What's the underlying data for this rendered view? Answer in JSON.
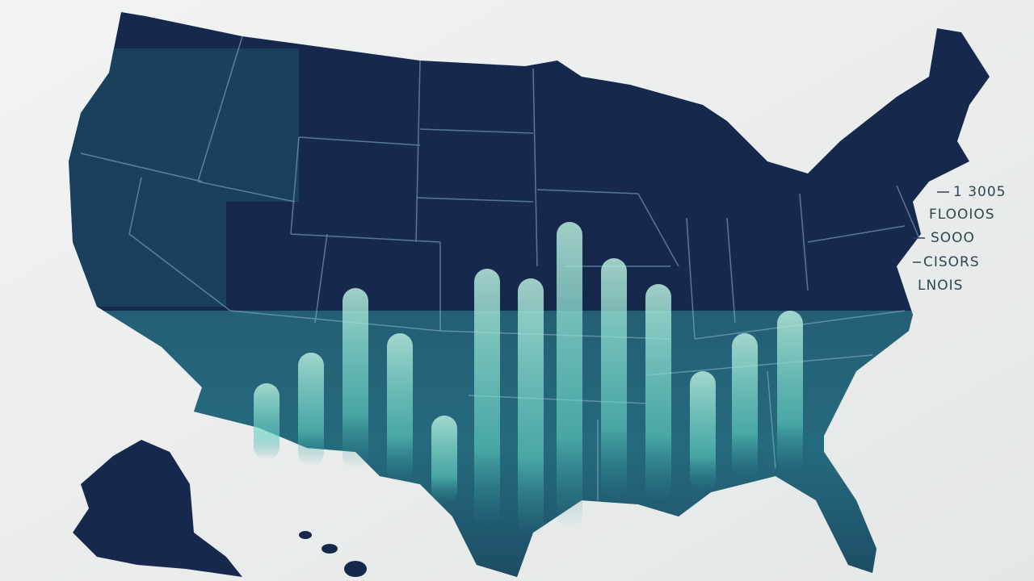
{
  "labels": [
    "1 3005",
    "FLOOIOS",
    "SOOO",
    "CISORS",
    "LNOIS"
  ]
}
